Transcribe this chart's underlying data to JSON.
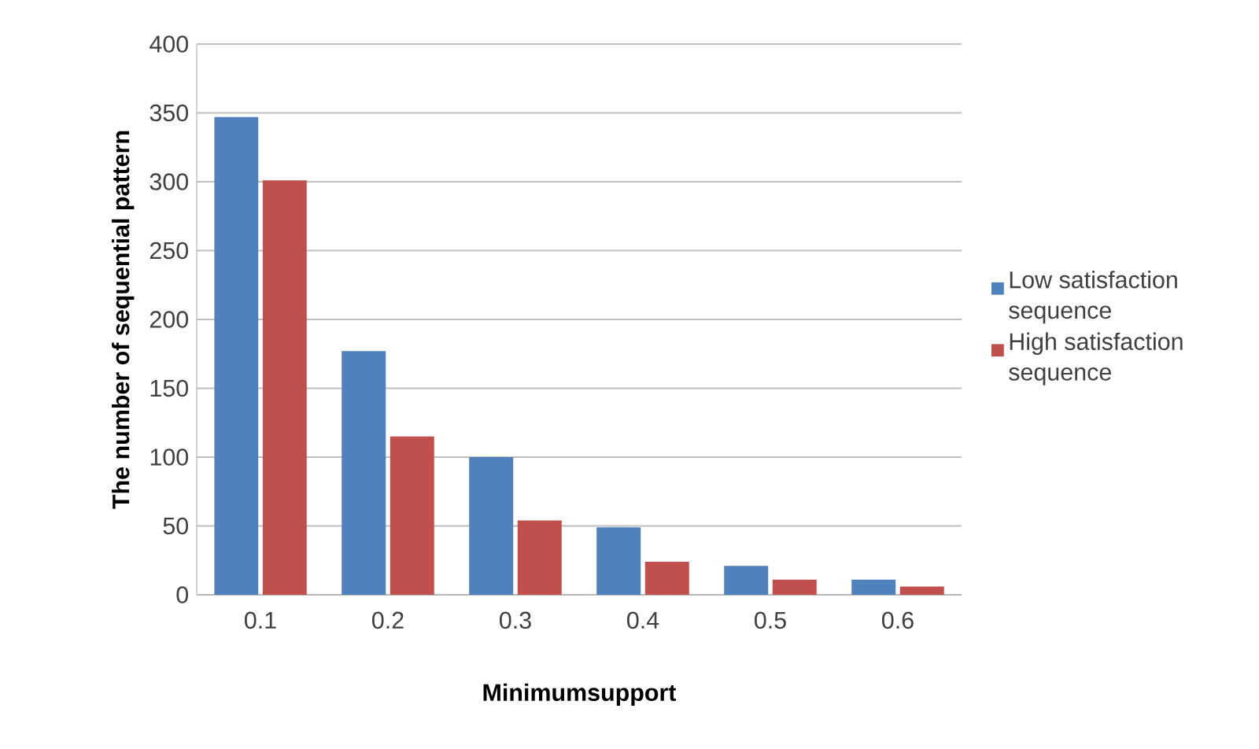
{
  "chart_data": {
    "type": "bar",
    "xlabel": "Minimumsupport",
    "ylabel": "The number of sequential pattern",
    "categories": [
      "0.1",
      "0.2",
      "0.3",
      "0.4",
      "0.5",
      "0.6"
    ],
    "series": [
      {
        "name": "Low satisfaction sequence",
        "color": "#4f81bd",
        "values": [
          347,
          177,
          100,
          49,
          21,
          11
        ]
      },
      {
        "name": "High satisfaction sequence",
        "color": "#c0504d",
        "values": [
          301,
          115,
          54,
          24,
          11,
          6
        ]
      }
    ],
    "ylim": [
      0,
      400
    ],
    "yticks": [
      0,
      50,
      100,
      150,
      200,
      250,
      300,
      350,
      400
    ],
    "grid": "y",
    "legend": "right"
  }
}
